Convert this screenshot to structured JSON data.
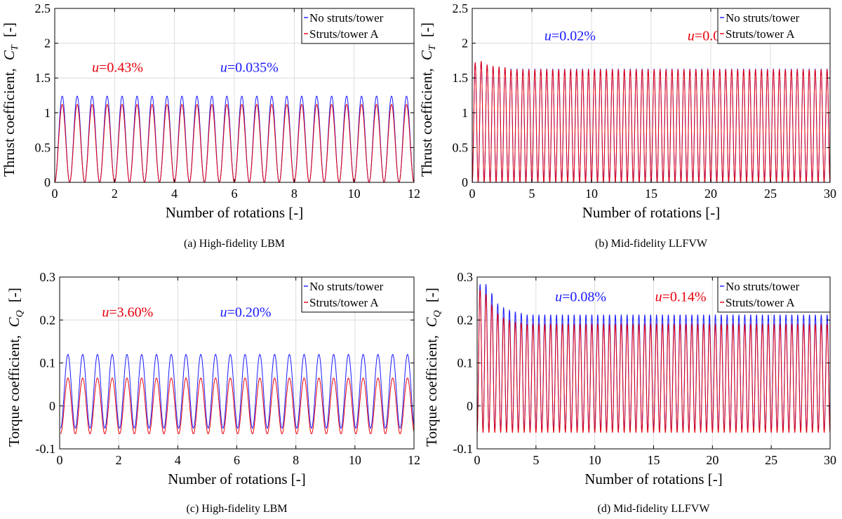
{
  "colors": {
    "no_struts": "#1a1aff",
    "struts": "#e8000b",
    "grid": "#dcdcdc",
    "axis": "#000000"
  },
  "chart_data": [
    {
      "type": "line",
      "caption": "(a)  High-fidelity LBM",
      "xlabel": "Number of rotations [-]",
      "ylabel": "Thrust coefficient, C_T  [-]",
      "ylabel_main": "Thrust coefficient,",
      "ylabel_sym": "C",
      "ylabel_sub": "T",
      "ylabel_unit": "[-]",
      "xlim": [
        0,
        12
      ],
      "ylim": [
        0,
        2.5
      ],
      "xticks": [
        0,
        2,
        4,
        6,
        8,
        10,
        12
      ],
      "yticks": [
        0,
        0.5,
        1,
        1.5,
        2,
        2.5
      ],
      "ytick_labels": [
        "0",
        "0.5",
        "1",
        "1.5",
        "2",
        "2.5"
      ],
      "grid": true,
      "legend_position": "top-right",
      "series": [
        {
          "name": "No struts/tower",
          "color": "#1a1aff",
          "period": 0.5,
          "min": 0,
          "max": 1.24,
          "x_start": 0,
          "x_end": 12
        },
        {
          "name": "Struts/tower A",
          "color": "#e8000b",
          "period": 0.5,
          "min": 0,
          "max": 1.12,
          "x_start": 0,
          "x_end": 12
        }
      ],
      "annotations": [
        {
          "var": "u",
          "value": "=0.43%",
          "color": "#e8000b",
          "x": 2.1,
          "y": 1.66
        },
        {
          "var": "u",
          "value": "=0.035%",
          "color": "#1a1aff",
          "x": 6.5,
          "y": 1.66
        }
      ]
    },
    {
      "type": "line",
      "caption": "(b)  Mid-fidelity LLFVW",
      "xlabel": "Number of rotations [-]",
      "ylabel": "Thrust coefficient, C_T  [-]",
      "ylabel_main": "Thrust coefficient,",
      "ylabel_sym": "C",
      "ylabel_sub": "T",
      "ylabel_unit": "[-]",
      "xlim": [
        0,
        30
      ],
      "ylim": [
        0,
        2.5
      ],
      "xticks": [
        0,
        5,
        10,
        15,
        20,
        25,
        30
      ],
      "yticks": [
        0,
        0.5,
        1,
        1.5,
        2,
        2.5
      ],
      "ytick_labels": [
        "0",
        "0.5",
        "1",
        "1.5",
        "2",
        "2.5"
      ],
      "grid": true,
      "legend_position": "top-right",
      "series": [
        {
          "name": "No struts/tower",
          "color": "#1a1aff",
          "period": 0.5,
          "min": 0,
          "max": 1.63,
          "transient": [
            1.72,
            1.74,
            1.69,
            1.67,
            1.66,
            1.65
          ],
          "x_start": 0,
          "x_end": 30
        },
        {
          "name": "Struts/tower A",
          "color": "#e8000b",
          "period": 0.5,
          "min": 0,
          "max": 1.62,
          "transient": [
            1.72,
            1.74,
            1.69,
            1.67,
            1.66,
            1.65
          ],
          "x_start": 0,
          "x_end": 30
        }
      ],
      "annotations": [
        {
          "var": "u",
          "value": "=0.02%",
          "color": "#1a1aff",
          "x": 8.2,
          "y": 2.11
        },
        {
          "var": "u",
          "value": "=0.03%",
          "color": "#e8000b",
          "x": 20.2,
          "y": 2.11
        }
      ]
    },
    {
      "type": "line",
      "caption": "(c)  High-fidelity LBM",
      "xlabel": "Number of rotations [-]",
      "ylabel": "Torque coefficient, C_Q  [-]",
      "ylabel_main": "Torque coefficient,",
      "ylabel_sym": "C",
      "ylabel_sub": "Q",
      "ylabel_unit": "[-]",
      "xlim": [
        0,
        12
      ],
      "ylim": [
        -0.1,
        0.3
      ],
      "xticks": [
        0,
        2,
        4,
        6,
        8,
        10,
        12
      ],
      "yticks": [
        -0.1,
        0,
        0.1,
        0.2,
        0.3
      ],
      "ytick_labels": [
        "-0.1",
        "0",
        "0.1",
        "0.2",
        "0.3"
      ],
      "grid": true,
      "legend_position": "top-right",
      "series": [
        {
          "name": "No struts/tower",
          "color": "#1a1aff",
          "period": 0.5,
          "min": -0.052,
          "max": 0.12,
          "x_start": 0.03,
          "x_end": 12
        },
        {
          "name": "Struts/tower A",
          "color": "#e8000b",
          "period": 0.5,
          "min": -0.065,
          "max": 0.065,
          "x_start": 0.03,
          "x_end": 12
        }
      ],
      "annotations": [
        {
          "var": "u",
          "value": "=3.60%",
          "color": "#e8000b",
          "x": 2.3,
          "y": 0.219
        },
        {
          "var": "u",
          "value": "=0.20%",
          "color": "#1a1aff",
          "x": 6.3,
          "y": 0.219
        }
      ]
    },
    {
      "type": "line",
      "caption": "(d)  Mid-fidelity LLFVW",
      "xlabel": "Number of rotations [-]",
      "ylabel": "Torque coefficient, C_Q  [-]",
      "ylabel_main": "Torque coefficient,",
      "ylabel_sym": "C",
      "ylabel_sub": "Q",
      "ylabel_unit": "[-]",
      "xlim": [
        0,
        30
      ],
      "ylim": [
        -0.1,
        0.3
      ],
      "xticks": [
        0,
        5,
        10,
        15,
        20,
        25,
        30
      ],
      "yticks": [
        -0.1,
        0,
        0.1,
        0.2,
        0.3
      ],
      "ytick_labels": [
        "-0.1",
        "0",
        "0.1",
        "0.2",
        "0.3"
      ],
      "grid": true,
      "legend_position": "top-right",
      "series": [
        {
          "name": "No struts/tower",
          "color": "#1a1aff",
          "period": 0.5,
          "min": -0.058,
          "max": 0.212,
          "transient": [
            0.283,
            0.283,
            0.262,
            0.238,
            0.229,
            0.223,
            0.219,
            0.216
          ],
          "x_start": 0,
          "x_end": 30
        },
        {
          "name": "Struts/tower A",
          "color": "#e8000b",
          "period": 0.5,
          "min": -0.062,
          "max": 0.19,
          "transient": [
            0.27,
            0.26,
            0.235,
            0.215,
            0.205,
            0.198,
            0.195,
            0.193
          ],
          "x_start": 0,
          "x_end": 30
        }
      ],
      "annotations": [
        {
          "var": "u",
          "value": "=0.08%",
          "color": "#1a1aff",
          "x": 8.8,
          "y": 0.255
        },
        {
          "var": "u",
          "value": "=0.14%",
          "color": "#e8000b",
          "x": 17.3,
          "y": 0.255
        }
      ]
    }
  ]
}
